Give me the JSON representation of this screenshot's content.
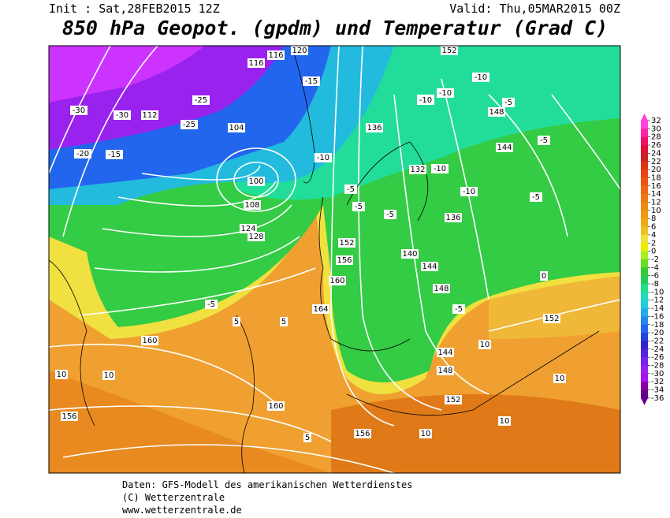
{
  "header": {
    "init": "Init : Sat,28FEB2015 12Z",
    "valid": "Valid: Thu,05MAR2015 00Z",
    "title": "850 hPa Geopot. (gpdm) und Temperatur (Grad C)"
  },
  "map": {
    "labels": [
      "152",
      "-10",
      "-10",
      "-5",
      "148",
      "144",
      "-5",
      "136",
      "-10",
      "132",
      "-10",
      "120",
      "116",
      "116",
      "112",
      "-30",
      "-30",
      "-20",
      "-15",
      "-25",
      "-25",
      "104",
      "100",
      "108",
      "124",
      "128",
      "-15",
      "-10",
      "-5",
      "-5",
      "136",
      "-5",
      "140",
      "144",
      "148",
      "152",
      "156",
      "160",
      "164",
      "5",
      "5",
      "-5",
      "160",
      "10",
      "10",
      "156",
      "160",
      "156",
      "10",
      "152",
      "148",
      "144",
      "152",
      "10",
      "0",
      "-5",
      "10",
      "10",
      "5",
      "-10",
      "-10",
      "-5"
    ]
  },
  "colorbar": {
    "ticks": [
      32,
      30,
      28,
      26,
      24,
      22,
      20,
      18,
      16,
      14,
      12,
      10,
      8,
      6,
      4,
      2,
      0,
      -2,
      -4,
      -6,
      -8,
      -10,
      -12,
      -14,
      -16,
      -18,
      -20,
      -22,
      -24,
      -26,
      -28,
      -30,
      -32,
      -34,
      -36
    ],
    "colors": [
      "#ff44dd",
      "#ff22aa",
      "#ee1166",
      "#dd1133",
      "#cc2222",
      "#dd3311",
      "#ee4411",
      "#ee5511",
      "#ee6611",
      "#ee7711",
      "#ee8811",
      "#ee9911",
      "#eeaa11",
      "#f0c020",
      "#f0e040",
      "#e8f000",
      "#aaee22",
      "#66dd22",
      "#33cc33",
      "#22cc55",
      "#22dd88",
      "#22ddbb",
      "#22ccdd",
      "#22aaee",
      "#2288ee",
      "#2266ee",
      "#2244dd",
      "#3322cc",
      "#5522dd",
      "#7722ee",
      "#9922ee",
      "#aa11ee",
      "#8800aa",
      "#660088"
    ]
  },
  "footer": {
    "line1": "Daten: GFS-Modell des amerikanischen Wetterdienstes",
    "line2": "(C) Wetterzentrale",
    "line3": "www.wetterzentrale.de"
  }
}
